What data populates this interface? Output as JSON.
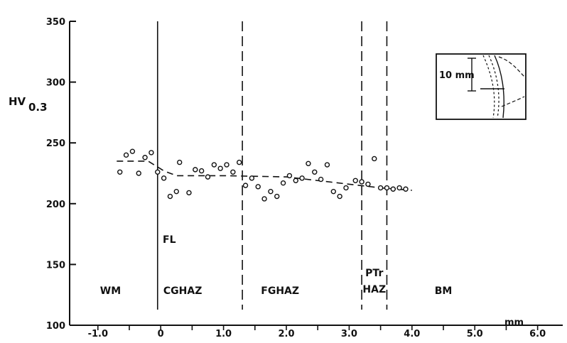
{
  "chart_data": {
    "type": "scatter",
    "title": "",
    "ylabel_main": "HV",
    "ylabel_sub": "0.3",
    "xunit": "mm",
    "xlim": [
      -1.45,
      6.4
    ],
    "ylim": [
      100,
      350
    ],
    "y_ticks": [
      100,
      150,
      200,
      250,
      300,
      350
    ],
    "x_ticks": [
      {
        "value": -1.0,
        "label": "-1.0"
      },
      {
        "value": 0,
        "label": "0"
      },
      {
        "value": 1.0,
        "label": "1.0"
      },
      {
        "value": 2.0,
        "label": "2.0"
      },
      {
        "value": 3.0,
        "label": "3.0"
      },
      {
        "value": 4.0,
        "label": "4.0"
      },
      {
        "value": 5.0,
        "label": "5.0"
      },
      {
        "value": 6.0,
        "label": "6.0"
      }
    ],
    "grid": false,
    "points": [
      {
        "x": -0.65,
        "y": 226
      },
      {
        "x": -0.55,
        "y": 240
      },
      {
        "x": -0.45,
        "y": 243
      },
      {
        "x": -0.35,
        "y": 225
      },
      {
        "x": -0.25,
        "y": 238
      },
      {
        "x": -0.15,
        "y": 242
      },
      {
        "x": -0.05,
        "y": 226
      },
      {
        "x": 0.05,
        "y": 221
      },
      {
        "x": 0.15,
        "y": 206
      },
      {
        "x": 0.25,
        "y": 210
      },
      {
        "x": 0.3,
        "y": 234
      },
      {
        "x": 0.45,
        "y": 209
      },
      {
        "x": 0.55,
        "y": 228
      },
      {
        "x": 0.65,
        "y": 227
      },
      {
        "x": 0.75,
        "y": 222
      },
      {
        "x": 0.85,
        "y": 232
      },
      {
        "x": 0.95,
        "y": 229
      },
      {
        "x": 1.05,
        "y": 232
      },
      {
        "x": 1.15,
        "y": 226
      },
      {
        "x": 1.25,
        "y": 234
      },
      {
        "x": 1.35,
        "y": 215
      },
      {
        "x": 1.45,
        "y": 221
      },
      {
        "x": 1.55,
        "y": 214
      },
      {
        "x": 1.65,
        "y": 204
      },
      {
        "x": 1.75,
        "y": 210
      },
      {
        "x": 1.85,
        "y": 206
      },
      {
        "x": 1.95,
        "y": 217
      },
      {
        "x": 2.05,
        "y": 223
      },
      {
        "x": 2.15,
        "y": 219
      },
      {
        "x": 2.25,
        "y": 221
      },
      {
        "x": 2.35,
        "y": 233
      },
      {
        "x": 2.45,
        "y": 226
      },
      {
        "x": 2.55,
        "y": 220
      },
      {
        "x": 2.65,
        "y": 232
      },
      {
        "x": 2.75,
        "y": 210
      },
      {
        "x": 2.85,
        "y": 206
      },
      {
        "x": 2.95,
        "y": 213
      },
      {
        "x": 3.1,
        "y": 219
      },
      {
        "x": 3.2,
        "y": 218
      },
      {
        "x": 3.3,
        "y": 216
      },
      {
        "x": 3.4,
        "y": 237
      },
      {
        "x": 3.5,
        "y": 213
      },
      {
        "x": 3.6,
        "y": 213
      },
      {
        "x": 3.7,
        "y": 212
      },
      {
        "x": 3.8,
        "y": 213
      },
      {
        "x": 3.9,
        "y": 212
      }
    ],
    "trend_line": [
      {
        "x": -0.7,
        "y": 235
      },
      {
        "x": -0.2,
        "y": 235
      },
      {
        "x": 0.05,
        "y": 227
      },
      {
        "x": 0.25,
        "y": 223
      },
      {
        "x": 1.0,
        "y": 223
      },
      {
        "x": 2.0,
        "y": 222
      },
      {
        "x": 3.0,
        "y": 216
      },
      {
        "x": 3.5,
        "y": 213
      },
      {
        "x": 4.0,
        "y": 211
      }
    ],
    "boundaries": [
      {
        "name": "FL",
        "x": -0.05,
        "style": "solid"
      },
      {
        "x": 1.3,
        "style": "dashed"
      },
      {
        "x": 3.2,
        "style": "dashed"
      },
      {
        "x": 3.6,
        "style": "dashed"
      }
    ],
    "boundary_label": "FL",
    "zones": [
      {
        "label": "WM",
        "x": -0.8
      },
      {
        "label": "CGHAZ",
        "x": 0.35
      },
      {
        "label": "FGHAZ",
        "x": 1.9
      },
      {
        "label": "PTr",
        "label2": "HAZ",
        "x": 3.4
      },
      {
        "label": "BM",
        "x": 4.5
      }
    ],
    "inset": {
      "label": "10 mm"
    }
  }
}
